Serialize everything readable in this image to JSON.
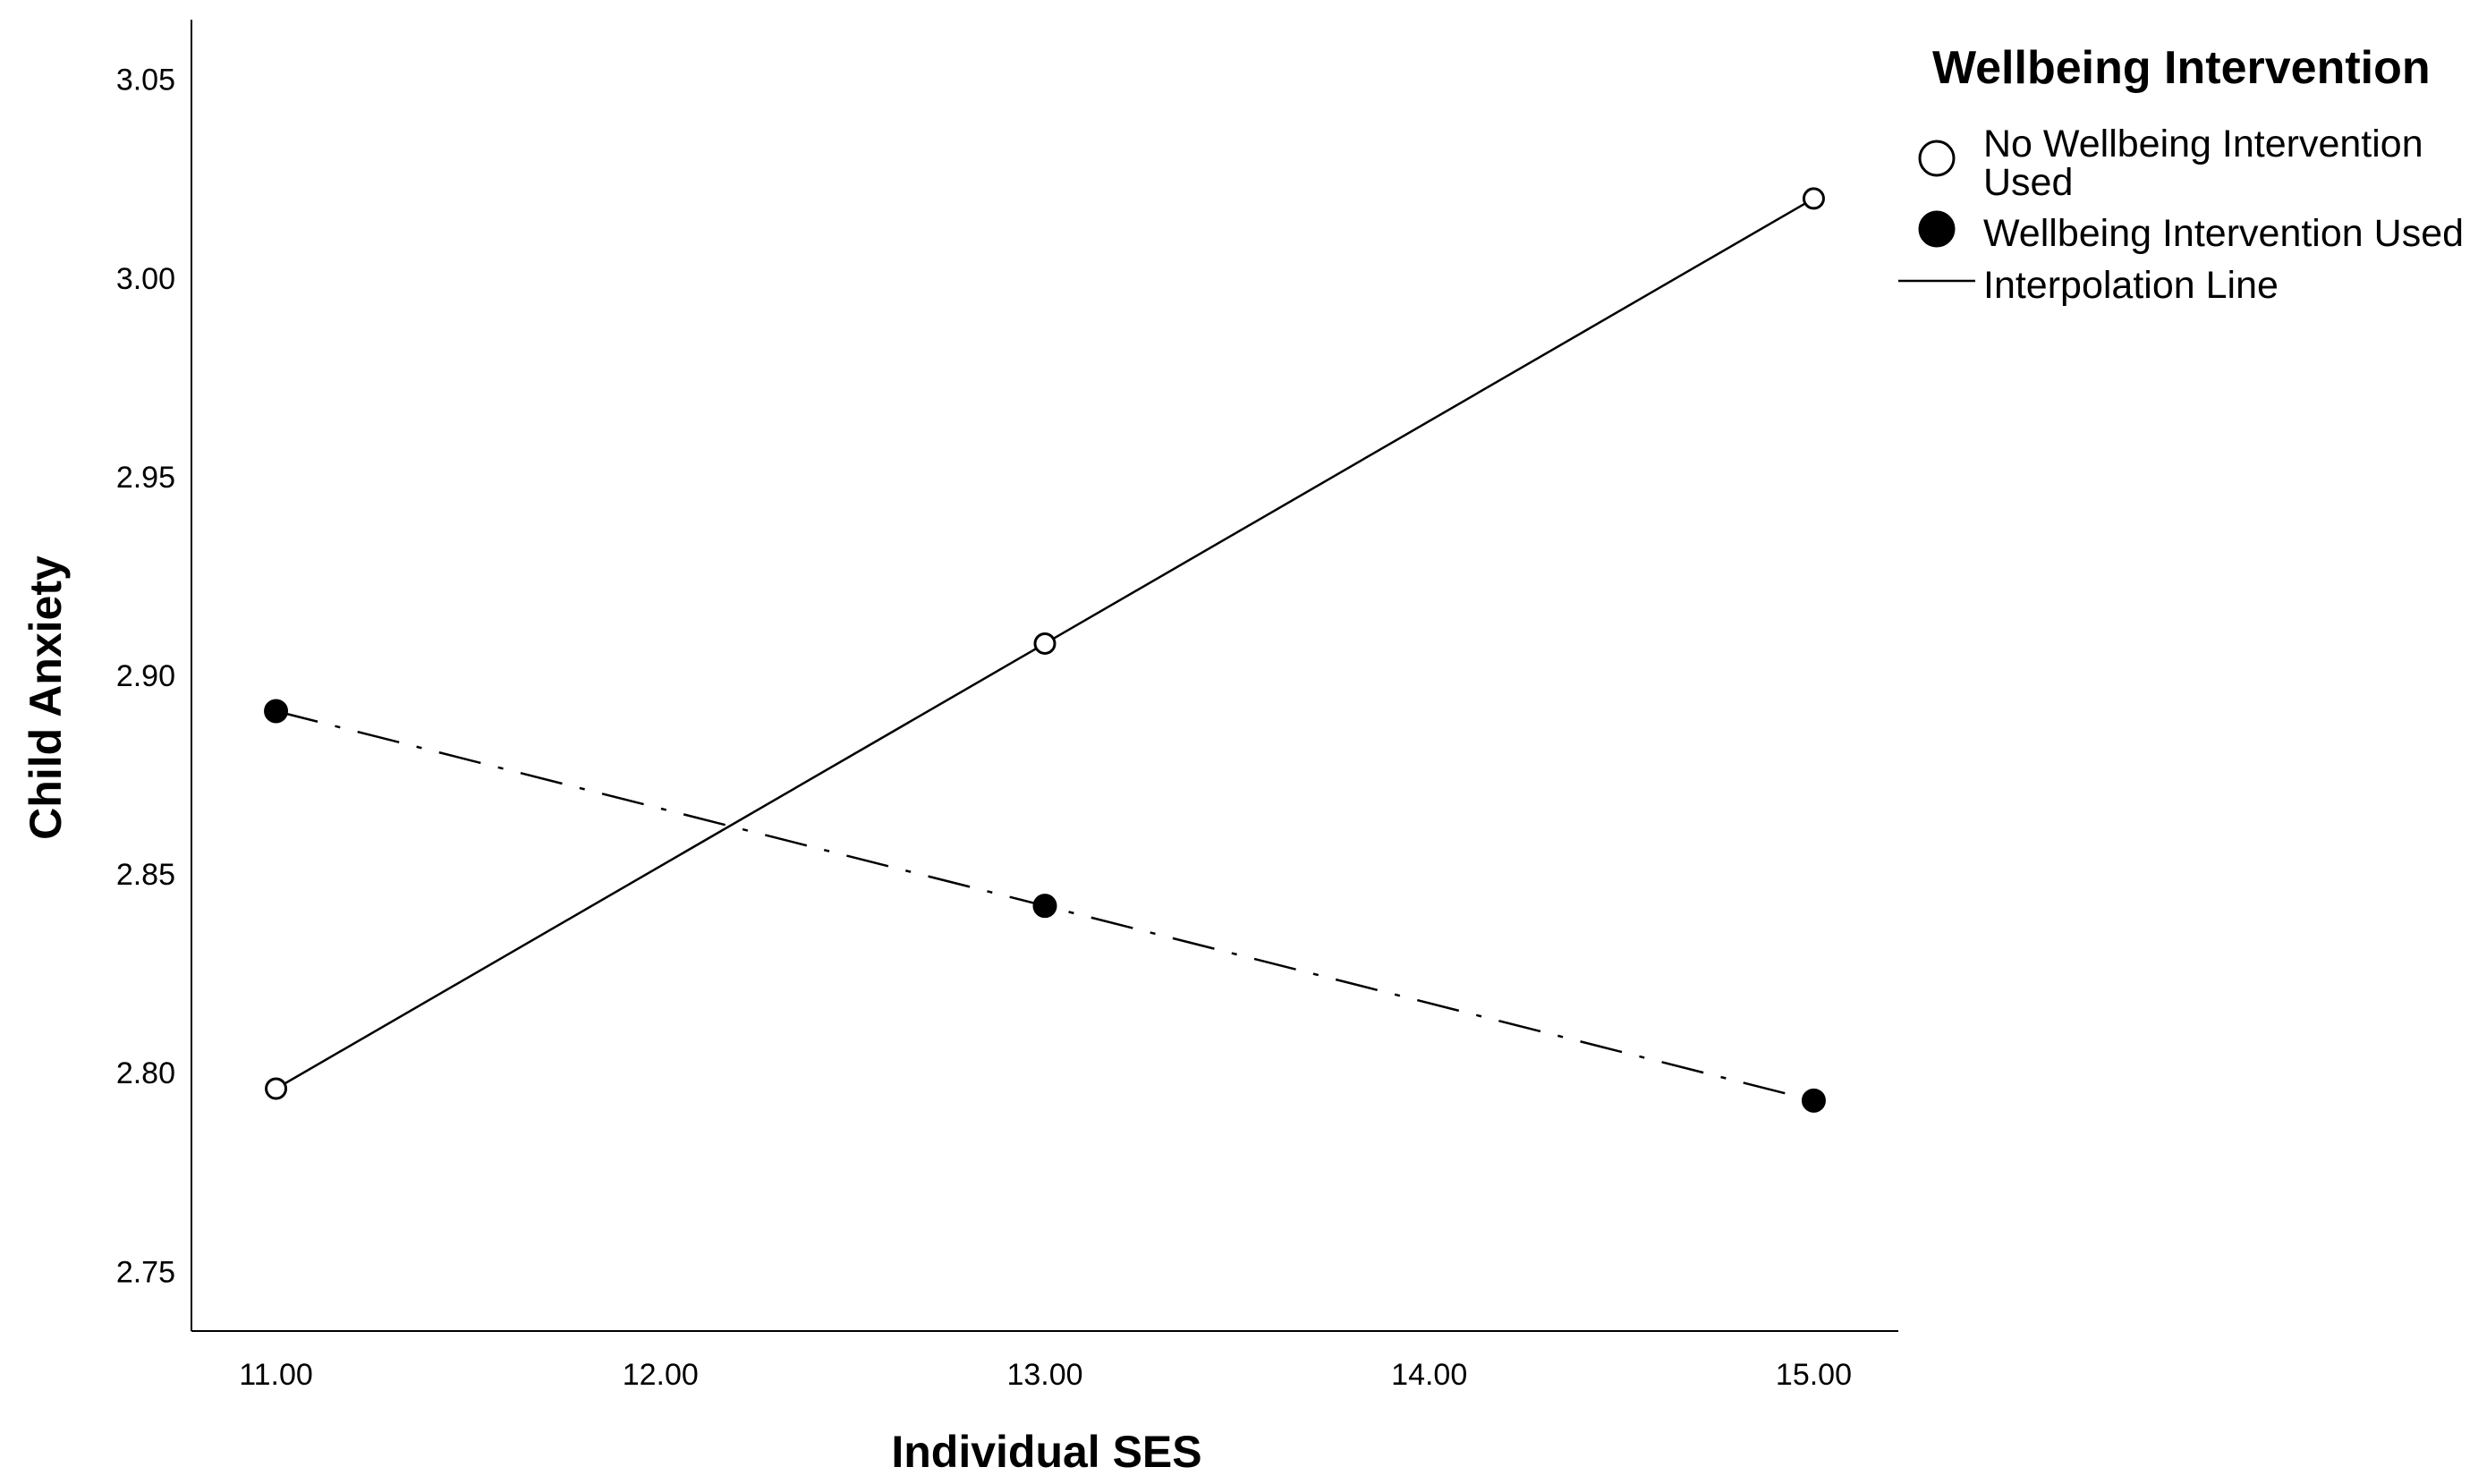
{
  "chart_data": {
    "type": "line",
    "xlabel": "Individual SES",
    "ylabel": "Child Anxiety",
    "xlim": [
      10.78,
      15.22
    ],
    "ylim": [
      2.735,
      3.065
    ],
    "x_ticks": [
      "11.00",
      "12.00",
      "13.00",
      "14.00",
      "15.00"
    ],
    "y_ticks": [
      "2.75",
      "2.80",
      "2.85",
      "2.90",
      "2.95",
      "3.00",
      "3.05"
    ],
    "x_tick_values": [
      11,
      12,
      13,
      14,
      15
    ],
    "y_tick_values": [
      2.75,
      2.8,
      2.85,
      2.9,
      2.95,
      3.0,
      3.05
    ],
    "grid": false,
    "legend": {
      "title": "Wellbeing Intervention",
      "placement": "top-right",
      "entries": [
        {
          "label_line1": "No Wellbeing Intervention",
          "label_line2": "Used",
          "marker": "open-circle"
        },
        {
          "label_line1": "Wellbeing Intervention Used",
          "marker": "filled-circle"
        },
        {
          "label_line1": "Interpolation Line",
          "marker": "line"
        }
      ]
    },
    "series": [
      {
        "name": "No Wellbeing Intervention Used",
        "x": [
          11,
          13,
          15
        ],
        "y": [
          2.796,
          2.908,
          3.02
        ],
        "marker": "open-circle",
        "line_style": "solid",
        "color": "#000000"
      },
      {
        "name": "Wellbeing Intervention Used",
        "x": [
          11,
          13,
          15
        ],
        "y": [
          2.891,
          2.842,
          2.793
        ],
        "marker": "filled-circle",
        "line_style": "dash-dot",
        "color": "#000000"
      }
    ]
  }
}
